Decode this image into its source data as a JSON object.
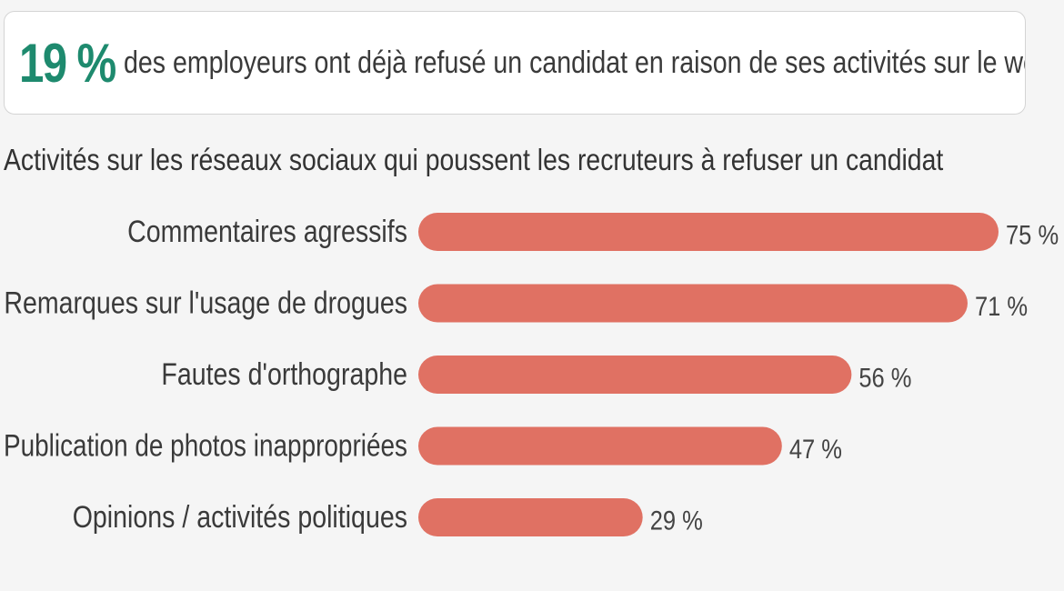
{
  "callout": {
    "highlight": "19 %",
    "text": "des employeurs ont déjà refusé un candidat en raison de ses activités sur le web"
  },
  "chart_data": {
    "type": "bar",
    "orientation": "horizontal",
    "title": "Activités sur les réseaux sociaux qui poussent les recruteurs à refuser un candidat",
    "categories": [
      "Commentaires agressifs",
      "Remarques sur l'usage de drogues",
      "Fautes d'orthographe",
      "Publication de photos inappropriées",
      "Opinions / activités politiques"
    ],
    "values": [
      75,
      71,
      56,
      47,
      29
    ],
    "value_labels": [
      "75 %",
      "71 %",
      "56 %",
      "47 %",
      "29 %"
    ],
    "unit": "%",
    "xlim": [
      0,
      75
    ],
    "grid": false,
    "bar_color": "#e07163"
  },
  "colors": {
    "accent": "#1e8a6e",
    "bar": "#e07163"
  }
}
